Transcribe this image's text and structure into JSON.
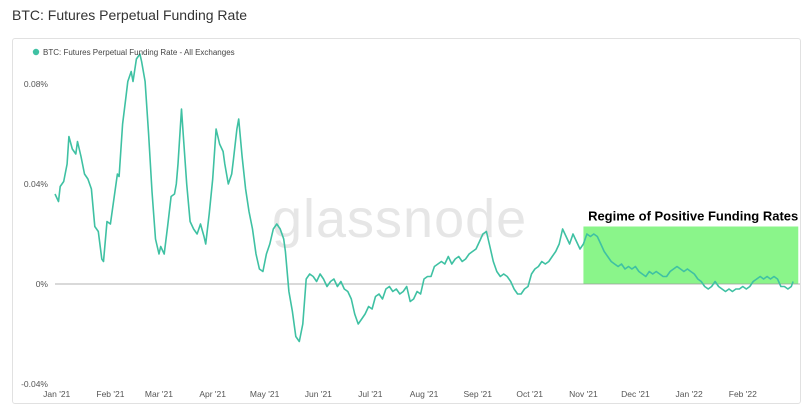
{
  "page": {
    "title": "BTC: Futures Perpetual Funding Rate"
  },
  "watermark": "glassnode",
  "chart_data": {
    "type": "line",
    "title": "BTC: Futures Perpetual Funding Rate",
    "xlabel": "",
    "ylabel": "",
    "y_unit": "%",
    "ylim": [
      -0.04,
      0.088
    ],
    "xlim": [
      "2020-12-31",
      "2022-03-06"
    ],
    "y_ticks": [
      {
        "value": 0.08,
        "label": "0.08%"
      },
      {
        "value": 0.04,
        "label": "0.04%"
      },
      {
        "value": 0,
        "label": "0%"
      },
      {
        "value": -0.04,
        "label": "-0.04%"
      }
    ],
    "x_ticks": [
      {
        "date": "2021-01-01",
        "label": "Jan '21"
      },
      {
        "date": "2021-02-01",
        "label": "Feb '21"
      },
      {
        "date": "2021-03-01",
        "label": "Mar '21"
      },
      {
        "date": "2021-04-01",
        "label": "Apr '21"
      },
      {
        "date": "2021-05-01",
        "label": "May '21"
      },
      {
        "date": "2021-06-01",
        "label": "Jun '21"
      },
      {
        "date": "2021-07-01",
        "label": "Jul '21"
      },
      {
        "date": "2021-08-01",
        "label": "Aug '21"
      },
      {
        "date": "2021-09-01",
        "label": "Sep '21"
      },
      {
        "date": "2021-10-01",
        "label": "Oct '21"
      },
      {
        "date": "2021-11-01",
        "label": "Nov '21"
      },
      {
        "date": "2021-12-01",
        "label": "Dec '21"
      },
      {
        "date": "2022-01-01",
        "label": "Jan '22"
      },
      {
        "date": "2022-02-01",
        "label": "Feb '22"
      }
    ],
    "grid": false,
    "zero_line": true,
    "legend": {
      "placement": "top-left",
      "entries": [
        "BTC: Futures Perpetual Funding Rate - All Exchanges"
      ]
    },
    "series": [
      {
        "name": "BTC: Futures Perpetual Funding Rate - All Exchanges",
        "color": "#3fc1a3",
        "points": [
          [
            "2020-12-31",
            0.036
          ],
          [
            "2021-01-02",
            0.033
          ],
          [
            "2021-01-03",
            0.039
          ],
          [
            "2021-01-05",
            0.041
          ],
          [
            "2021-01-07",
            0.048
          ],
          [
            "2021-01-08",
            0.059
          ],
          [
            "2021-01-10",
            0.054
          ],
          [
            "2021-01-12",
            0.052
          ],
          [
            "2021-01-13",
            0.057
          ],
          [
            "2021-01-15",
            0.051
          ],
          [
            "2021-01-17",
            0.044
          ],
          [
            "2021-01-19",
            0.042
          ],
          [
            "2021-01-21",
            0.038
          ],
          [
            "2021-01-23",
            0.023
          ],
          [
            "2021-01-25",
            0.021
          ],
          [
            "2021-01-27",
            0.01
          ],
          [
            "2021-01-28",
            0.009
          ],
          [
            "2021-01-30",
            0.025
          ],
          [
            "2021-02-01",
            0.024
          ],
          [
            "2021-02-03",
            0.034
          ],
          [
            "2021-02-05",
            0.044
          ],
          [
            "2021-02-06",
            0.043
          ],
          [
            "2021-02-08",
            0.064
          ],
          [
            "2021-02-10",
            0.075
          ],
          [
            "2021-02-11",
            0.081
          ],
          [
            "2021-02-13",
            0.085
          ],
          [
            "2021-02-14",
            0.081
          ],
          [
            "2021-02-16",
            0.09
          ],
          [
            "2021-02-18",
            0.092
          ],
          [
            "2021-02-19",
            0.089
          ],
          [
            "2021-02-21",
            0.081
          ],
          [
            "2021-02-23",
            0.06
          ],
          [
            "2021-02-25",
            0.037
          ],
          [
            "2021-02-27",
            0.018
          ],
          [
            "2021-03-01",
            0.012
          ],
          [
            "2021-03-02",
            0.015
          ],
          [
            "2021-03-04",
            0.012
          ],
          [
            "2021-03-06",
            0.023
          ],
          [
            "2021-03-08",
            0.035
          ],
          [
            "2021-03-10",
            0.036
          ],
          [
            "2021-03-11",
            0.04
          ],
          [
            "2021-03-12",
            0.048
          ],
          [
            "2021-03-14",
            0.07
          ],
          [
            "2021-03-15",
            0.06
          ],
          [
            "2021-03-17",
            0.04
          ],
          [
            "2021-03-19",
            0.025
          ],
          [
            "2021-03-21",
            0.022
          ],
          [
            "2021-03-23",
            0.02
          ],
          [
            "2021-03-25",
            0.024
          ],
          [
            "2021-03-27",
            0.019
          ],
          [
            "2021-03-28",
            0.016
          ],
          [
            "2021-03-30",
            0.028
          ],
          [
            "2021-04-01",
            0.042
          ],
          [
            "2021-04-03",
            0.062
          ],
          [
            "2021-04-05",
            0.056
          ],
          [
            "2021-04-07",
            0.053
          ],
          [
            "2021-04-08",
            0.048
          ],
          [
            "2021-04-10",
            0.04
          ],
          [
            "2021-04-12",
            0.044
          ],
          [
            "2021-04-13",
            0.05
          ],
          [
            "2021-04-15",
            0.062
          ],
          [
            "2021-04-16",
            0.066
          ],
          [
            "2021-04-18",
            0.051
          ],
          [
            "2021-04-20",
            0.038
          ],
          [
            "2021-04-22",
            0.029
          ],
          [
            "2021-04-24",
            0.022
          ],
          [
            "2021-04-26",
            0.012
          ],
          [
            "2021-04-28",
            0.006
          ],
          [
            "2021-04-30",
            0.005
          ],
          [
            "2021-05-02",
            0.012
          ],
          [
            "2021-05-04",
            0.016
          ],
          [
            "2021-05-06",
            0.022
          ],
          [
            "2021-05-08",
            0.024
          ],
          [
            "2021-05-10",
            0.022
          ],
          [
            "2021-05-12",
            0.018
          ],
          [
            "2021-05-13",
            0.013
          ],
          [
            "2021-05-15",
            -0.003
          ],
          [
            "2021-05-17",
            -0.011
          ],
          [
            "2021-05-19",
            -0.021
          ],
          [
            "2021-05-21",
            -0.023
          ],
          [
            "2021-05-23",
            -0.016
          ],
          [
            "2021-05-25",
            0.002
          ],
          [
            "2021-05-27",
            0.004
          ],
          [
            "2021-05-29",
            0.003
          ],
          [
            "2021-05-31",
            0.001
          ],
          [
            "2021-06-02",
            0.004
          ],
          [
            "2021-06-04",
            0.002
          ],
          [
            "2021-06-06",
            -0.001
          ],
          [
            "2021-06-08",
            0.001
          ],
          [
            "2021-06-10",
            0.002
          ],
          [
            "2021-06-12",
            -0.001
          ],
          [
            "2021-06-14",
            0.001
          ],
          [
            "2021-06-16",
            -0.002
          ],
          [
            "2021-06-18",
            -0.003
          ],
          [
            "2021-06-20",
            -0.006
          ],
          [
            "2021-06-22",
            -0.012
          ],
          [
            "2021-06-24",
            -0.016
          ],
          [
            "2021-06-26",
            -0.014
          ],
          [
            "2021-06-28",
            -0.012
          ],
          [
            "2021-06-30",
            -0.009
          ],
          [
            "2021-07-02",
            -0.01
          ],
          [
            "2021-07-04",
            -0.005
          ],
          [
            "2021-07-06",
            -0.004
          ],
          [
            "2021-07-08",
            -0.006
          ],
          [
            "2021-07-10",
            -0.002
          ],
          [
            "2021-07-12",
            -0.001
          ],
          [
            "2021-07-14",
            -0.003
          ],
          [
            "2021-07-16",
            -0.002
          ],
          [
            "2021-07-18",
            -0.004
          ],
          [
            "2021-07-20",
            -0.003
          ],
          [
            "2021-07-22",
            -0.001
          ],
          [
            "2021-07-24",
            -0.007
          ],
          [
            "2021-07-26",
            -0.006
          ],
          [
            "2021-07-28",
            -0.003
          ],
          [
            "2021-07-30",
            -0.004
          ],
          [
            "2021-08-01",
            0.002
          ],
          [
            "2021-08-03",
            0.003
          ],
          [
            "2021-08-05",
            0.003
          ],
          [
            "2021-08-07",
            0.007
          ],
          [
            "2021-08-09",
            0.008
          ],
          [
            "2021-08-11",
            0.009
          ],
          [
            "2021-08-13",
            0.008
          ],
          [
            "2021-08-15",
            0.011
          ],
          [
            "2021-08-17",
            0.008
          ],
          [
            "2021-08-19",
            0.01
          ],
          [
            "2021-08-21",
            0.011
          ],
          [
            "2021-08-23",
            0.009
          ],
          [
            "2021-08-25",
            0.01
          ],
          [
            "2021-08-27",
            0.012
          ],
          [
            "2021-08-29",
            0.013
          ],
          [
            "2021-08-31",
            0.014
          ],
          [
            "2021-09-02",
            0.017
          ],
          [
            "2021-09-04",
            0.02
          ],
          [
            "2021-09-06",
            0.021
          ],
          [
            "2021-09-08",
            0.015
          ],
          [
            "2021-09-10",
            0.009
          ],
          [
            "2021-09-12",
            0.005
          ],
          [
            "2021-09-14",
            0.003
          ],
          [
            "2021-09-16",
            0.004
          ],
          [
            "2021-09-18",
            0.003
          ],
          [
            "2021-09-20",
            0.001
          ],
          [
            "2021-09-22",
            -0.002
          ],
          [
            "2021-09-24",
            -0.004
          ],
          [
            "2021-09-26",
            -0.004
          ],
          [
            "2021-09-28",
            -0.002
          ],
          [
            "2021-09-30",
            -0.001
          ],
          [
            "2021-10-02",
            0.004
          ],
          [
            "2021-10-04",
            0.006
          ],
          [
            "2021-10-06",
            0.007
          ],
          [
            "2021-10-08",
            0.009
          ],
          [
            "2021-10-10",
            0.008
          ],
          [
            "2021-10-12",
            0.009
          ],
          [
            "2021-10-14",
            0.011
          ],
          [
            "2021-10-16",
            0.013
          ],
          [
            "2021-10-18",
            0.016
          ],
          [
            "2021-10-20",
            0.022
          ],
          [
            "2021-10-22",
            0.019
          ],
          [
            "2021-10-24",
            0.016
          ],
          [
            "2021-10-26",
            0.02
          ],
          [
            "2021-10-28",
            0.017
          ],
          [
            "2021-10-30",
            0.014
          ],
          [
            "2021-11-01",
            0.016
          ],
          [
            "2021-11-03",
            0.02
          ],
          [
            "2021-11-05",
            0.019
          ],
          [
            "2021-11-07",
            0.02
          ],
          [
            "2021-11-09",
            0.019
          ],
          [
            "2021-11-11",
            0.016
          ],
          [
            "2021-11-13",
            0.013
          ],
          [
            "2021-11-15",
            0.011
          ],
          [
            "2021-11-17",
            0.009
          ],
          [
            "2021-11-19",
            0.008
          ],
          [
            "2021-11-21",
            0.007
          ],
          [
            "2021-11-23",
            0.008
          ],
          [
            "2021-11-25",
            0.006
          ],
          [
            "2021-11-27",
            0.007
          ],
          [
            "2021-11-29",
            0.006
          ],
          [
            "2021-12-01",
            0.007
          ],
          [
            "2021-12-03",
            0.005
          ],
          [
            "2021-12-05",
            0.004
          ],
          [
            "2021-12-07",
            0.003
          ],
          [
            "2021-12-09",
            0.005
          ],
          [
            "2021-12-11",
            0.004
          ],
          [
            "2021-12-13",
            0.005
          ],
          [
            "2021-12-15",
            0.004
          ],
          [
            "2021-12-17",
            0.003
          ],
          [
            "2021-12-19",
            0.003
          ],
          [
            "2021-12-21",
            0.005
          ],
          [
            "2021-12-23",
            0.006
          ],
          [
            "2021-12-25",
            0.007
          ],
          [
            "2021-12-27",
            0.006
          ],
          [
            "2021-12-29",
            0.005
          ],
          [
            "2021-12-31",
            0.006
          ],
          [
            "2022-01-02",
            0.005
          ],
          [
            "2022-01-04",
            0.004
          ],
          [
            "2022-01-06",
            0.002
          ],
          [
            "2022-01-08",
            0.001
          ],
          [
            "2022-01-10",
            -0.001
          ],
          [
            "2022-01-12",
            -0.002
          ],
          [
            "2022-01-14",
            -0.001
          ],
          [
            "2022-01-16",
            0.001
          ],
          [
            "2022-01-18",
            -0.001
          ],
          [
            "2022-01-20",
            -0.002
          ],
          [
            "2022-01-22",
            -0.003
          ],
          [
            "2022-01-24",
            -0.002
          ],
          [
            "2022-01-26",
            -0.003
          ],
          [
            "2022-01-28",
            -0.002
          ],
          [
            "2022-01-30",
            -0.002
          ],
          [
            "2022-02-01",
            -0.001
          ],
          [
            "2022-02-03",
            -0.002
          ],
          [
            "2022-02-05",
            -0.001
          ],
          [
            "2022-02-07",
            0.001
          ],
          [
            "2022-02-09",
            0.002
          ],
          [
            "2022-02-11",
            0.003
          ],
          [
            "2022-02-13",
            0.002
          ],
          [
            "2022-02-15",
            0.003
          ],
          [
            "2022-02-17",
            0.002
          ],
          [
            "2022-02-19",
            0.003
          ],
          [
            "2022-02-21",
            0.002
          ],
          [
            "2022-02-23",
            -0.001
          ],
          [
            "2022-02-25",
            -0.001
          ],
          [
            "2022-02-27",
            -0.002
          ],
          [
            "2022-03-01",
            -0.001
          ],
          [
            "2022-03-02",
            0.001
          ]
        ]
      }
    ],
    "annotations": [
      {
        "text": "Regime of Positive Funding Rates",
        "region": {
          "x_start": "2021-11-01",
          "x_end": "2022-03-05",
          "y_start": 0,
          "y_end": 0.023
        },
        "color": "#8af58a"
      }
    ]
  }
}
